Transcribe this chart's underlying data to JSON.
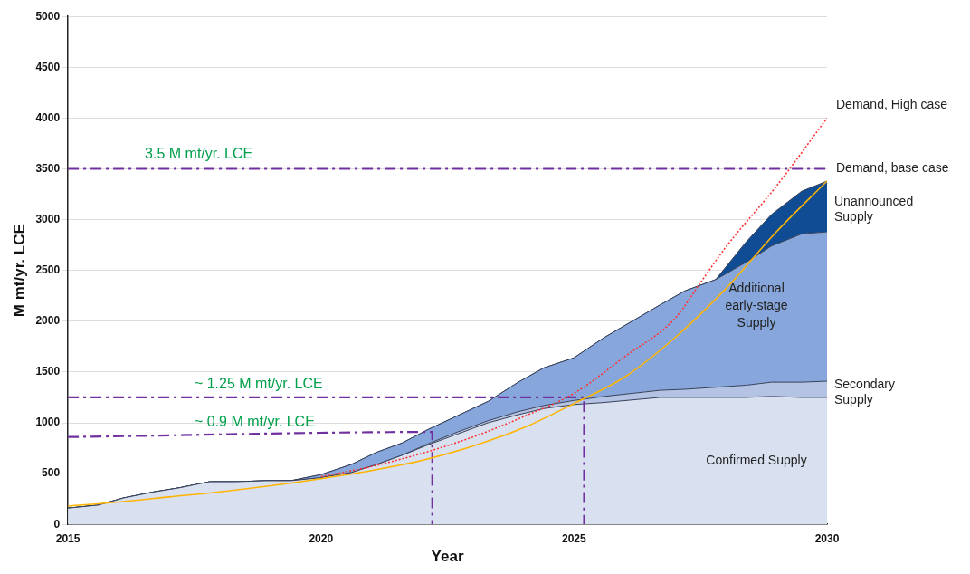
{
  "chart_data": {
    "type": "area",
    "xlabel": "Year",
    "ylabel": "M mt/yr. LCE",
    "x": [
      2015,
      2015.6,
      2016.1,
      2016.7,
      2017.2,
      2017.8,
      2018.3,
      2018.9,
      2019.4,
      2020,
      2020.6,
      2021.1,
      2021.6,
      2022.1,
      2022.7,
      2023.3,
      2023.9,
      2024.4,
      2025,
      2025.6,
      2026.7,
      2027.2,
      2027.8,
      2028.4,
      2028.9,
      2029.5,
      2030
    ],
    "stacked": true,
    "series": [
      {
        "name": "Confirmed Supply",
        "color": "#d9e0f0",
        "values": [
          160,
          190,
          260,
          320,
          360,
          420,
          420,
          430,
          430,
          460,
          510,
          590,
          680,
          780,
          890,
          1000,
          1080,
          1140,
          1180,
          1200,
          1250,
          1250,
          1250,
          1250,
          1260,
          1250,
          1250
        ]
      },
      {
        "name": "Secondary Supply",
        "color": "#b4c3e4",
        "values": [
          0,
          0,
          0,
          0,
          0,
          0,
          0,
          0,
          0,
          0,
          0,
          0,
          0,
          10,
          20,
          20,
          30,
          30,
          40,
          60,
          70,
          80,
          100,
          120,
          140,
          150,
          160
        ]
      },
      {
        "name": "Additional early-stage Supply",
        "color": "#87a7dc",
        "values": [
          0,
          0,
          0,
          0,
          0,
          0,
          0,
          0,
          0,
          30,
          80,
          120,
          120,
          140,
          160,
          190,
          290,
          370,
          420,
          580,
          840,
          970,
          1060,
          1210,
          1340,
          1460,
          1470
        ]
      },
      {
        "name": "Unannounced Supply",
        "color": "#0f4c93",
        "values": [
          0,
          0,
          0,
          0,
          0,
          0,
          0,
          0,
          0,
          0,
          0,
          0,
          0,
          0,
          0,
          0,
          0,
          0,
          0,
          0,
          0,
          0,
          0,
          200,
          310,
          420,
          500
        ]
      },
      {
        "type": "line",
        "name": "Demand, High case",
        "color": "#ff3333",
        "line_style": "dotted",
        "x": [
          2020,
          2021,
          2022,
          2023,
          2024,
          2025,
          2026,
          2027,
          2027.5,
          2028,
          2029,
          2030
        ],
        "values": [
          470,
          570,
          700,
          860,
          1060,
          1290,
          1650,
          2030,
          2380,
          2730,
          3330,
          4000
        ]
      },
      {
        "type": "line",
        "name": "Demand, base case",
        "color": "#ffb400",
        "line_style": "solid",
        "x": [
          2015,
          2016,
          2017,
          2018,
          2019,
          2020,
          2021,
          2022,
          2023,
          2024,
          2025,
          2026,
          2027,
          2028,
          2029,
          2030
        ],
        "values": [
          180,
          220,
          270,
          320,
          380,
          450,
          530,
          630,
          770,
          950,
          1190,
          1450,
          1840,
          2320,
          2880,
          3380
        ]
      },
      {
        "type": "line",
        "color": "#7030a0",
        "line_style": "dashed",
        "x": [
          2015,
          2022.2,
          2022.2
        ],
        "values": [
          860,
          910,
          0
        ]
      },
      {
        "type": "line",
        "color": "#7030a0",
        "line_style": "dashed",
        "x": [
          2015,
          2025.2,
          2025.2
        ],
        "values": [
          1250,
          1250,
          0
        ]
      }
    ],
    "ref_lines": [
      {
        "axis": "y",
        "value": 3500,
        "label": "3.5 M mt/yr. LCE",
        "color": "#7030a0",
        "line_style": "dashed"
      }
    ],
    "annotations": [
      {
        "text": "~ 1.25 M mt/yr. LCE",
        "x": 2017.5,
        "y": 1250
      },
      {
        "text": "~ 0.9 M mt/yr. LCE",
        "x": 2017.5,
        "y": 880
      }
    ],
    "xlim": [
      2015,
      2030
    ],
    "xticks": [
      2015,
      2020,
      2025,
      2030
    ],
    "ylim": [
      0,
      5000
    ],
    "yticks": [
      0,
      500,
      1000,
      1500,
      2000,
      2500,
      3000,
      3500,
      4000,
      4500,
      5000
    ],
    "grid": "y",
    "legend": false,
    "marker": "none"
  }
}
